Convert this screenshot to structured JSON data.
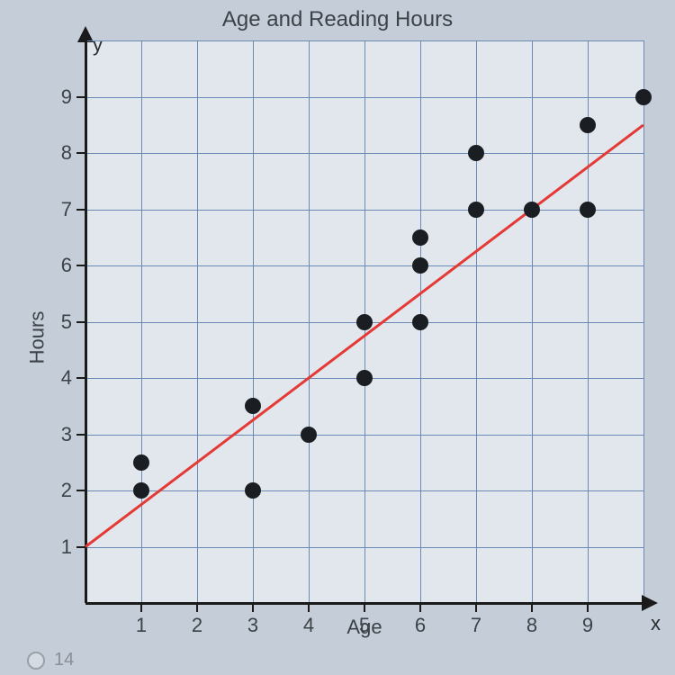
{
  "chart": {
    "type": "scatter",
    "title": "Age and Reading Hours",
    "xlabel": "Age",
    "ylabel": "Hours",
    "y_letter": "y",
    "x_letter": "x",
    "xlim": [
      0,
      10
    ],
    "ylim": [
      0,
      10
    ],
    "x_ticks": [
      1,
      2,
      3,
      4,
      5,
      6,
      7,
      8,
      9
    ],
    "y_ticks": [
      1,
      2,
      3,
      4,
      5,
      6,
      7,
      8,
      9
    ],
    "grid_color": "#6a89b5",
    "background_color": "#e1e7ec",
    "page_background": "#c5cdd8",
    "axis_color": "#1a1a1a",
    "text_color": "#3d4248",
    "title_fontsize": 24,
    "label_fontsize": 22,
    "tick_fontsize": 22,
    "point_color": "#1a1e22",
    "point_size": 18,
    "trend_line_color": "#e53935",
    "trend_line_width": 3,
    "trend_line": {
      "x1": 0,
      "y1": 1,
      "x2": 10,
      "y2": 8.5
    },
    "data_points": [
      {
        "x": 1,
        "y": 2
      },
      {
        "x": 1,
        "y": 2.5
      },
      {
        "x": 3,
        "y": 2
      },
      {
        "x": 3,
        "y": 3.5
      },
      {
        "x": 4,
        "y": 3
      },
      {
        "x": 5,
        "y": 4
      },
      {
        "x": 5,
        "y": 5
      },
      {
        "x": 6,
        "y": 5
      },
      {
        "x": 6,
        "y": 6
      },
      {
        "x": 6,
        "y": 6.5
      },
      {
        "x": 7,
        "y": 7
      },
      {
        "x": 7,
        "y": 8
      },
      {
        "x": 8,
        "y": 7
      },
      {
        "x": 9,
        "y": 7
      },
      {
        "x": 9,
        "y": 8.5
      },
      {
        "x": 10,
        "y": 9
      }
    ]
  },
  "option": {
    "label": "14"
  }
}
